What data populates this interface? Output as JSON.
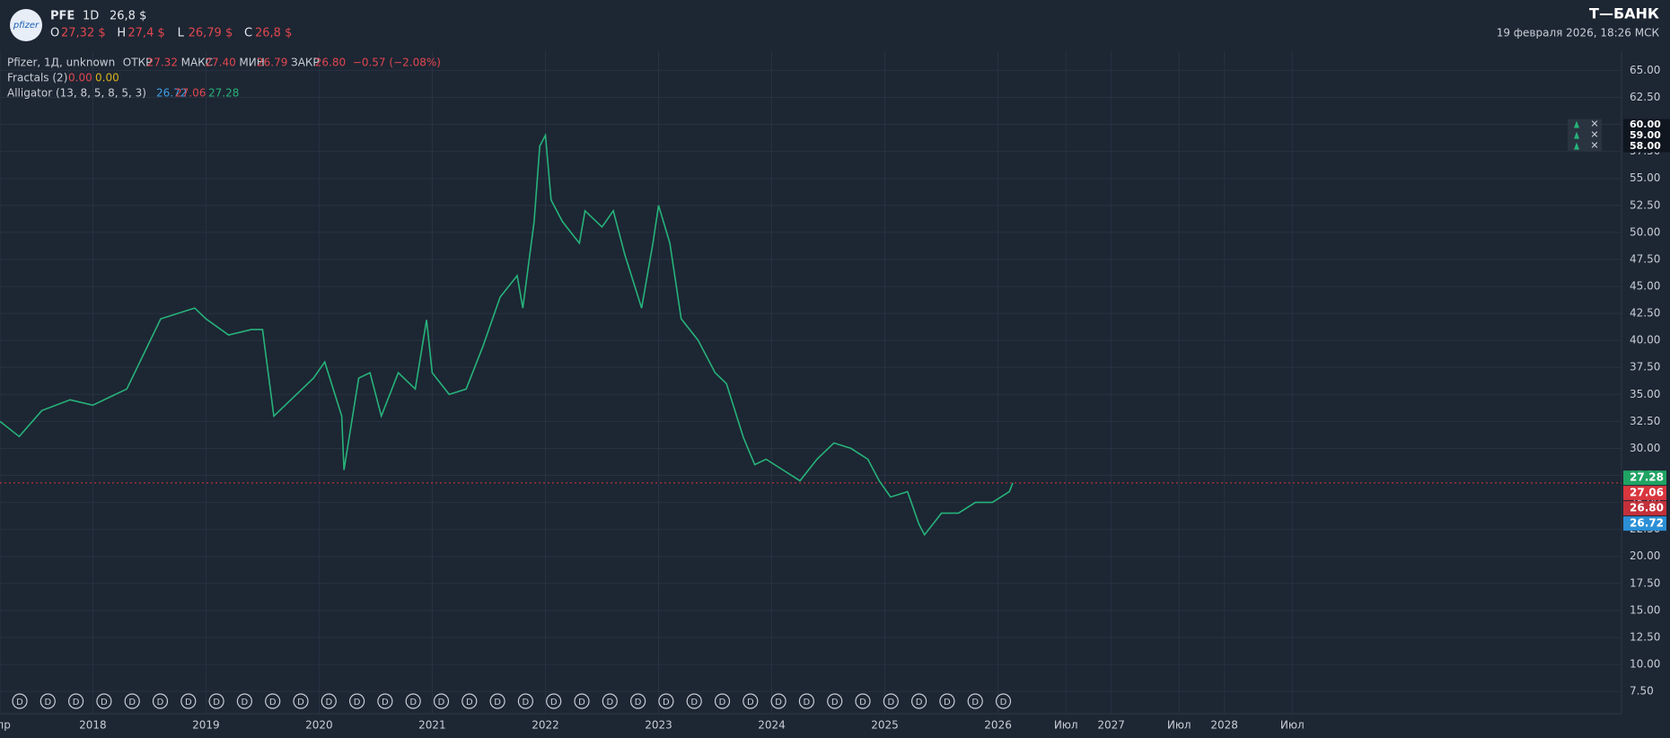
{
  "header": {
    "logo": "pfizer",
    "ticker": "PFE",
    "interval": "1D",
    "price": "26,8 $",
    "ohlc": [
      {
        "key": "O",
        "value": "27,32 $"
      },
      {
        "key": "H",
        "value": "27,4 $"
      },
      {
        "key": "L",
        "value": "26,79 $"
      },
      {
        "key": "C",
        "value": "26,8 $"
      }
    ],
    "brand": "Т—БАНК",
    "datetime": "19 февраля 2026, 18:26 МСК"
  },
  "legend": {
    "main": "Pfizer, 1Д, unknown",
    "fields": [
      {
        "key": "ОТКР",
        "value": "27.32"
      },
      {
        "key": "МАКС",
        "value": "27.40"
      },
      {
        "key": "МИН",
        "value": "26.79"
      },
      {
        "key": "ЗАКР",
        "value": "26.80"
      }
    ],
    "change": "−0.57 (−2.08%)",
    "fractals": "Fractals (2)",
    "fractal_values": [
      "0.00",
      "0.00"
    ],
    "alligator": "Alligator (13, 8, 5, 8, 5, 3)",
    "alligator_values": [
      "26.72",
      "27.06",
      "27.28"
    ]
  },
  "dividend_label": "D",
  "chart_data": {
    "type": "line",
    "x": [
      2017.18,
      2017.35,
      2017.55,
      2017.8,
      2018.0,
      2018.3,
      2018.6,
      2018.9,
      2019.0,
      2019.2,
      2019.4,
      2019.5,
      2019.6,
      2019.8,
      2019.95,
      2020.05,
      2020.2,
      2020.22,
      2020.35,
      2020.45,
      2020.55,
      2020.7,
      2020.85,
      2020.95,
      2021.0,
      2021.15,
      2021.3,
      2021.45,
      2021.6,
      2021.75,
      2021.8,
      2021.9,
      2021.95,
      2022.0,
      2022.05,
      2022.15,
      2022.3,
      2022.35,
      2022.5,
      2022.6,
      2022.7,
      2022.85,
      2022.95,
      2023.0,
      2023.1,
      2023.2,
      2023.35,
      2023.5,
      2023.6,
      2023.75,
      2023.85,
      2023.95,
      2024.1,
      2024.25,
      2024.4,
      2024.55,
      2024.7,
      2024.85,
      2024.95,
      2025.05,
      2025.2,
      2025.3,
      2025.35,
      2025.5,
      2025.65,
      2025.8,
      2025.95,
      2026.1,
      2026.13
    ],
    "series": [
      {
        "name": "PFE",
        "color": "#26b37a",
        "values": [
          32.5,
          31.1,
          33.5,
          34.5,
          34,
          35.5,
          42,
          43,
          42,
          40.5,
          41,
          41,
          33,
          35,
          36.5,
          38,
          33,
          28,
          36.5,
          37,
          33,
          37,
          35.5,
          41.9,
          37,
          35,
          35.5,
          39.5,
          44,
          46,
          43,
          51,
          58,
          59,
          53,
          51,
          49,
          52,
          50.5,
          52,
          48,
          43,
          49,
          52.5,
          49,
          42,
          40,
          37,
          36,
          31,
          28.5,
          29,
          28,
          27,
          29,
          30.5,
          30,
          29,
          27,
          25.5,
          26,
          23,
          22,
          24,
          24,
          25,
          25,
          26,
          26.8
        ]
      }
    ],
    "xlim": [
      2017.18,
      2031.51
    ],
    "xticks": [
      {
        "value": 2017.18,
        "label": "Апр"
      },
      2018,
      2019,
      2020,
      2021,
      2022,
      2023,
      2024,
      2025,
      2026,
      {
        "value": 2026.6,
        "label": "Июл"
      },
      2027,
      {
        "value": 2027.6,
        "label": "Июл"
      },
      2028,
      {
        "value": 2028.6,
        "label": "Июл"
      }
    ],
    "ylim": [
      5.43,
      66.78
    ],
    "yticks": [
      {
        "value": 7.5,
        "label": "7.50"
      },
      {
        "value": 10,
        "label": "10.00"
      },
      {
        "value": 12.5,
        "label": "12.50"
      },
      {
        "value": 15,
        "label": "15.00"
      },
      {
        "value": 17.5,
        "label": "17.50"
      },
      {
        "value": 20,
        "label": "20.00"
      },
      {
        "value": 22.5,
        "label": "22.50"
      },
      {
        "value": 25,
        "label": "25.00"
      },
      {
        "value": 27.5,
        "label": "27.50"
      },
      {
        "value": 30,
        "label": "30.00"
      },
      {
        "value": 32.5,
        "label": "32.50"
      },
      {
        "value": 35,
        "label": "35.00"
      },
      {
        "value": 37.5,
        "label": "37.50"
      },
      {
        "value": 40,
        "label": "40.00"
      },
      {
        "value": 42.5,
        "label": "42.50"
      },
      {
        "value": 45,
        "label": "45.00"
      },
      {
        "value": 47.5,
        "label": "47.50"
      },
      {
        "value": 50,
        "label": "50.00"
      },
      {
        "value": 52.5,
        "label": "52.50"
      },
      {
        "value": 55,
        "label": "55.00"
      },
      {
        "value": 57.5,
        "label": "57.50"
      },
      {
        "value": 60,
        "label": "60.00"
      },
      {
        "value": 62.5,
        "label": "62.50"
      },
      {
        "value": 65,
        "label": "65.00"
      }
    ],
    "grid": true,
    "last_price": {
      "value": 26.8,
      "color": "#d9363e"
    },
    "price_labels": [
      {
        "value": 27.28,
        "label": "27.28",
        "color": "#1fa463"
      },
      {
        "value": 27.06,
        "label": "27.06",
        "color": "#d9363e"
      },
      {
        "value": 26.8,
        "label": "26.80",
        "color": "#c4303a"
      },
      {
        "value": 26.72,
        "label": "26.72",
        "color": "#2b8fd6"
      }
    ],
    "alerts": [
      {
        "value": 60,
        "label": "60.00"
      },
      {
        "value": 59,
        "label": "59.00"
      },
      {
        "value": 58,
        "label": "58.00"
      }
    ]
  }
}
